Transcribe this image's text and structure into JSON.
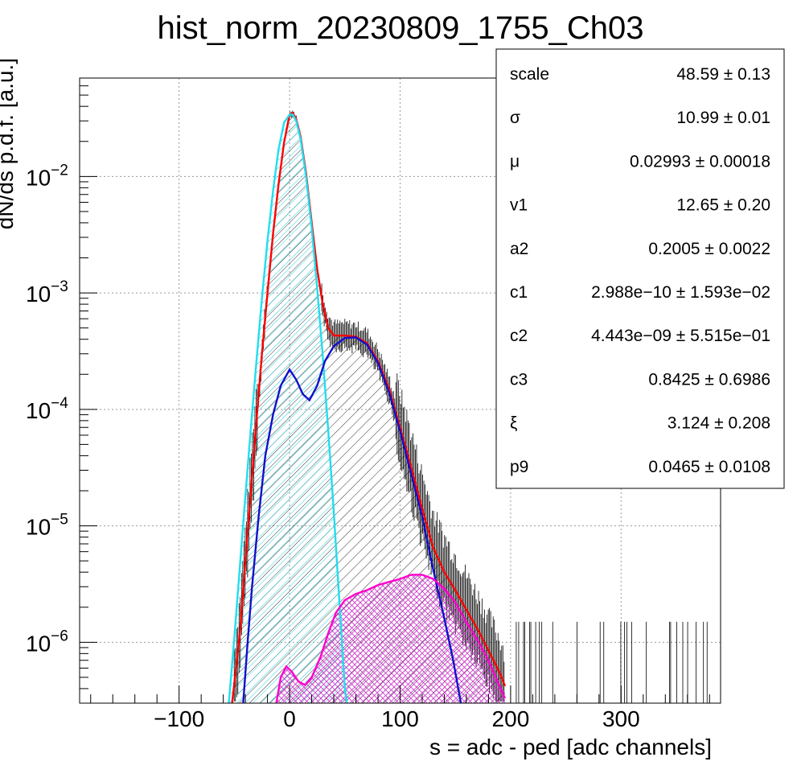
{
  "chart_data": {
    "type": "line",
    "title": "hist_norm_20230809_1755_Ch03",
    "xlabel": "s = adc - ped [adc channels]",
    "ylabel": "dN/ds p.d.f. [a.u.]",
    "xlim": [
      -190,
      390
    ],
    "ylim_log": [
      3e-07,
      0.07
    ],
    "y_scale": "log",
    "grid": true,
    "x_ticks": [
      {
        "value": -100,
        "label": "−100"
      },
      {
        "value": 0,
        "label": "0"
      },
      {
        "value": 100,
        "label": "100"
      },
      {
        "value": 200,
        "label": "200"
      },
      {
        "value": 300,
        "label": "300"
      }
    ],
    "y_ticks": [
      {
        "value": 1e-06,
        "base": "10",
        "exp": "−6"
      },
      {
        "value": 1e-05,
        "base": "10",
        "exp": "−5"
      },
      {
        "value": 0.0001,
        "base": "10",
        "exp": "−4"
      },
      {
        "value": 0.001,
        "base": "10",
        "exp": "−3"
      },
      {
        "value": 0.01,
        "base": "10",
        "exp": "−2"
      }
    ],
    "series": [
      {
        "role": "total-fit",
        "color": "#ff0000",
        "fill": "hatch-black",
        "points": [
          [
            -52,
            3e-07
          ],
          [
            -45,
            1.2e-06
          ],
          [
            -40,
            5e-06
          ],
          [
            -35,
            2e-05
          ],
          [
            -30,
            8e-05
          ],
          [
            -25,
            0.0003
          ],
          [
            -20,
            0.001
          ],
          [
            -15,
            0.0032
          ],
          [
            -10,
            0.0085
          ],
          [
            -5,
            0.0195
          ],
          [
            0,
            0.034
          ],
          [
            3,
            0.035
          ],
          [
            6,
            0.031
          ],
          [
            10,
            0.022
          ],
          [
            15,
            0.0105
          ],
          [
            20,
            0.004
          ],
          [
            25,
            0.0016
          ],
          [
            30,
            0.0008
          ],
          [
            35,
            0.0005
          ],
          [
            40,
            0.00043
          ],
          [
            50,
            0.00043
          ],
          [
            60,
            0.00042
          ],
          [
            70,
            0.00037
          ],
          [
            80,
            0.00026
          ],
          [
            90,
            0.00015
          ],
          [
            100,
            7e-05
          ],
          [
            110,
            3.2e-05
          ],
          [
            120,
            1.4e-05
          ],
          [
            130,
            6.5e-06
          ],
          [
            140,
            4e-06
          ],
          [
            150,
            2.8e-06
          ],
          [
            160,
            1.9e-06
          ],
          [
            170,
            1.3e-06
          ],
          [
            180,
            8.5e-07
          ],
          [
            190,
            5.5e-07
          ],
          [
            195,
            4.2e-07
          ]
        ]
      },
      {
        "role": "pedestal-component",
        "color": "#22ddee",
        "fill": "hatch-cyan",
        "points": [
          [
            -55,
            3e-07
          ],
          [
            -50,
            1.1e-06
          ],
          [
            -45,
            4.5e-06
          ],
          [
            -40,
            1.8e-05
          ],
          [
            -35,
            7e-05
          ],
          [
            -30,
            0.00026
          ],
          [
            -25,
            0.0009
          ],
          [
            -20,
            0.0028
          ],
          [
            -15,
            0.0075
          ],
          [
            -10,
            0.017
          ],
          [
            -5,
            0.029
          ],
          [
            0,
            0.034
          ],
          [
            3,
            0.034
          ],
          [
            6,
            0.03
          ],
          [
            10,
            0.021
          ],
          [
            15,
            0.0098
          ],
          [
            20,
            0.0036
          ],
          [
            25,
            0.0011
          ],
          [
            30,
            0.00029
          ],
          [
            35,
            6.5e-05
          ],
          [
            40,
            1.3e-05
          ],
          [
            45,
            2.3e-06
          ],
          [
            50,
            4e-07
          ],
          [
            52,
            3e-07
          ]
        ]
      },
      {
        "role": "single-pe-component",
        "color": "#1010cc",
        "fill": "none",
        "points": [
          [
            -42,
            3e-07
          ],
          [
            -38,
            1e-06
          ],
          [
            -34,
            3e-06
          ],
          [
            -28,
            1.2e-05
          ],
          [
            -22,
            4e-05
          ],
          [
            -15,
            9e-05
          ],
          [
            -8,
            0.00016
          ],
          [
            0,
            0.00022
          ],
          [
            6,
            0.00018
          ],
          [
            12,
            0.000135
          ],
          [
            18,
            0.00012
          ],
          [
            25,
            0.00016
          ],
          [
            32,
            0.00026
          ],
          [
            40,
            0.00035
          ],
          [
            50,
            0.00041
          ],
          [
            60,
            0.000415
          ],
          [
            70,
            0.00036
          ],
          [
            80,
            0.00025
          ],
          [
            90,
            0.00014
          ],
          [
            100,
            6.5e-05
          ],
          [
            110,
            2.8e-05
          ],
          [
            120,
            1.2e-05
          ],
          [
            130,
            4.2e-06
          ],
          [
            140,
            1.6e-06
          ],
          [
            148,
            7e-07
          ],
          [
            155,
            3e-07
          ]
        ]
      },
      {
        "role": "multi-pe-component",
        "color": "#ff00cc",
        "fill": "hatch-magenta",
        "points": [
          [
            -12,
            3e-07
          ],
          [
            -8,
            5e-07
          ],
          [
            -3,
            6.2e-07
          ],
          [
            2,
            5.6e-07
          ],
          [
            8,
            4.6e-07
          ],
          [
            14,
            4.3e-07
          ],
          [
            20,
            5e-07
          ],
          [
            28,
            7.5e-07
          ],
          [
            35,
            1.2e-06
          ],
          [
            42,
            1.8e-06
          ],
          [
            50,
            2.3e-06
          ],
          [
            60,
            2.6e-06
          ],
          [
            70,
            2.8e-06
          ],
          [
            80,
            3.1e-06
          ],
          [
            90,
            3.3e-06
          ],
          [
            100,
            3.5e-06
          ],
          [
            110,
            3.8e-06
          ],
          [
            120,
            3.8e-06
          ],
          [
            130,
            3.5e-06
          ],
          [
            140,
            2.9e-06
          ],
          [
            150,
            2.2e-06
          ],
          [
            160,
            1.5e-06
          ],
          [
            170,
            1.05e-06
          ],
          [
            180,
            7e-07
          ],
          [
            190,
            4.2e-07
          ],
          [
            195,
            3.3e-07
          ]
        ]
      }
    ]
  },
  "stats_box": {
    "rows": [
      {
        "label": "scale",
        "value": "48.59 ± 0.13"
      },
      {
        "label": "σ",
        "value": "10.99 ± 0.01"
      },
      {
        "label": "μ",
        "value": "0.02993 ± 0.00018"
      },
      {
        "label": "v1",
        "value": "12.65 ± 0.20"
      },
      {
        "label": "a2",
        "value": "0.2005 ± 0.0022"
      },
      {
        "label": "c1",
        "value": "2.988e−10 ± 1.593e−02"
      },
      {
        "label": "c2",
        "value": "4.443e−09 ± 5.515e−01"
      },
      {
        "label": "c3",
        "value": "0.8425 ± 0.6986"
      },
      {
        "label": "ξ",
        "value": "3.124 ± 0.208"
      },
      {
        "label": "p9",
        "value": "0.0465 ± 0.0108"
      }
    ]
  }
}
